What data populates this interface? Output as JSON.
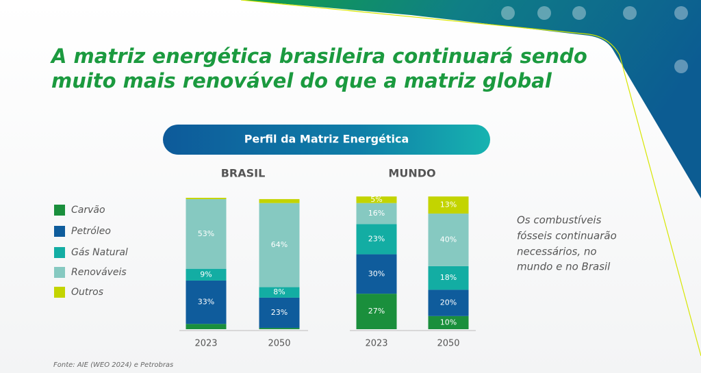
{
  "title": [
    "A matriz energética brasileira continuará sendo",
    "muito mais renovável do que a matriz global"
  ],
  "header": "Perfil da Matriz Energética",
  "note": [
    "Os combustíveis",
    "fósseis continuarão",
    "necessários, no",
    "mundo e no Brasil"
  ],
  "source": "Fonte: AIE (WEO 2024) e Petrobras",
  "chart_data": [
    {
      "type": "bar",
      "stacked": true,
      "title": "BRASIL",
      "categories": [
        "2023",
        "2050"
      ],
      "ylim": [
        0,
        100
      ],
      "series": [
        {
          "name": "Carvão",
          "color": "#1a8f3c",
          "values": [
            4,
            1
          ],
          "value_labels": [
            null,
            null
          ]
        },
        {
          "name": "Petróleo",
          "color": "#0f5c9c",
          "values": [
            33,
            23
          ],
          "value_labels": [
            "33%",
            "23%"
          ]
        },
        {
          "name": "Gás Natural",
          "color": "#13ada3",
          "values": [
            9,
            8
          ],
          "value_labels": [
            "9%",
            "8%"
          ]
        },
        {
          "name": "Renováveis",
          "color": "#86c9c1",
          "values": [
            53,
            64
          ],
          "value_labels": [
            "53%",
            "64%"
          ]
        },
        {
          "name": "Outros",
          "color": "#c3d400",
          "values": [
            1,
            3
          ],
          "value_labels": [
            null,
            null
          ]
        }
      ]
    },
    {
      "type": "bar",
      "stacked": true,
      "title": "MUNDO",
      "categories": [
        "2023",
        "2050"
      ],
      "ylim": [
        0,
        100
      ],
      "series": [
        {
          "name": "Carvão",
          "color": "#1a8f3c",
          "values": [
            27,
            10
          ],
          "value_labels": [
            "27%",
            "10%"
          ]
        },
        {
          "name": "Petróleo",
          "color": "#0f5c9c",
          "values": [
            30,
            20
          ],
          "value_labels": [
            "30%",
            "20%"
          ]
        },
        {
          "name": "Gás Natural",
          "color": "#13ada3",
          "values": [
            23,
            18
          ],
          "value_labels": [
            "23%",
            "18%"
          ]
        },
        {
          "name": "Renováveis",
          "color": "#86c9c1",
          "values": [
            16,
            40
          ],
          "value_labels": [
            "16%",
            "40%"
          ]
        },
        {
          "name": "Outros",
          "color": "#c3d400",
          "values": [
            5,
            13
          ],
          "value_labels": [
            "5%",
            "13%"
          ]
        }
      ]
    }
  ]
}
